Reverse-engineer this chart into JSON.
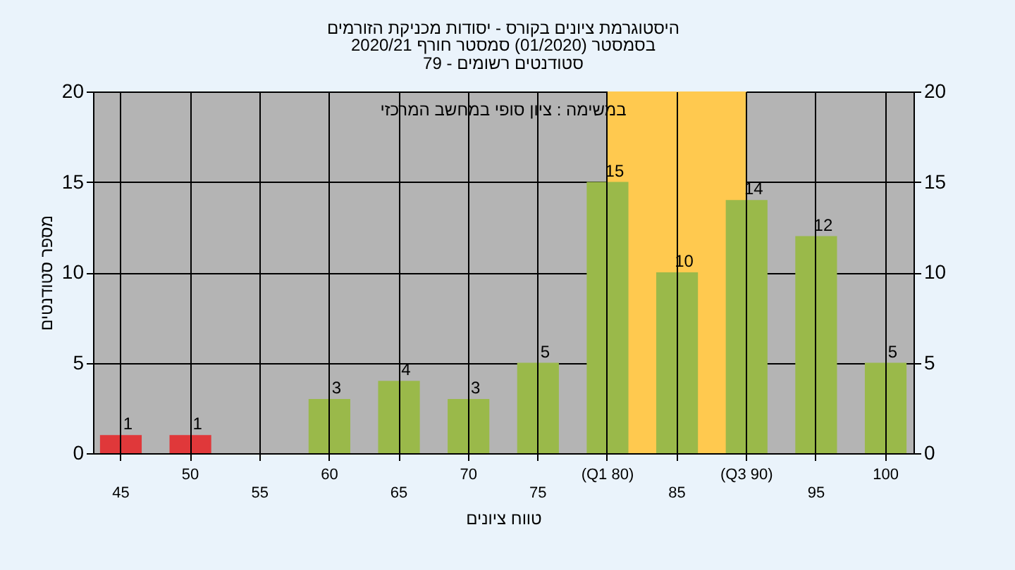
{
  "chart_data": {
    "type": "bar",
    "title": "היסטוגרמת ציונים בקורס - יסודות מכניקת הזורמים",
    "subtitle": "בסמסטר  (01/2020)  סמסטר חורף 2020/21\nסטודנטים רשומים - 79",
    "xlabel": "טווח ציונים",
    "ylabel": "מספר סטודנטים",
    "annotations": [
      "במשימה : ציון סופי במחשב המרכזי"
    ],
    "categories": [
      "45",
      "50",
      "55",
      "60",
      "65",
      "70",
      "75",
      "(Q1 80)",
      "85",
      "(Q3 90)",
      "95",
      "100"
    ],
    "values": [
      1,
      1,
      null,
      3,
      4,
      3,
      5,
      15,
      10,
      14,
      12,
      5
    ],
    "colors": [
      "#e0383a",
      "#e0383a",
      "#9ab94a",
      "#9ab94a",
      "#9ab94a",
      "#9ab94a",
      "#9ab94a",
      "#9ab94a",
      "#9ab94a",
      "#9ab94a",
      "#9ab94a",
      "#9ab94a"
    ],
    "bands": [
      {
        "axis": "x",
        "from": "(Q1 80)",
        "to": "(Q3 90)",
        "color": "#ffc94f"
      }
    ],
    "ylim": [
      0,
      20
    ],
    "yticks": [
      0,
      5,
      10,
      15,
      20
    ],
    "y2lim": [
      0,
      20
    ],
    "y2ticks": [
      0,
      5,
      10,
      15,
      20
    ],
    "data_labels": true,
    "grid": true
  }
}
